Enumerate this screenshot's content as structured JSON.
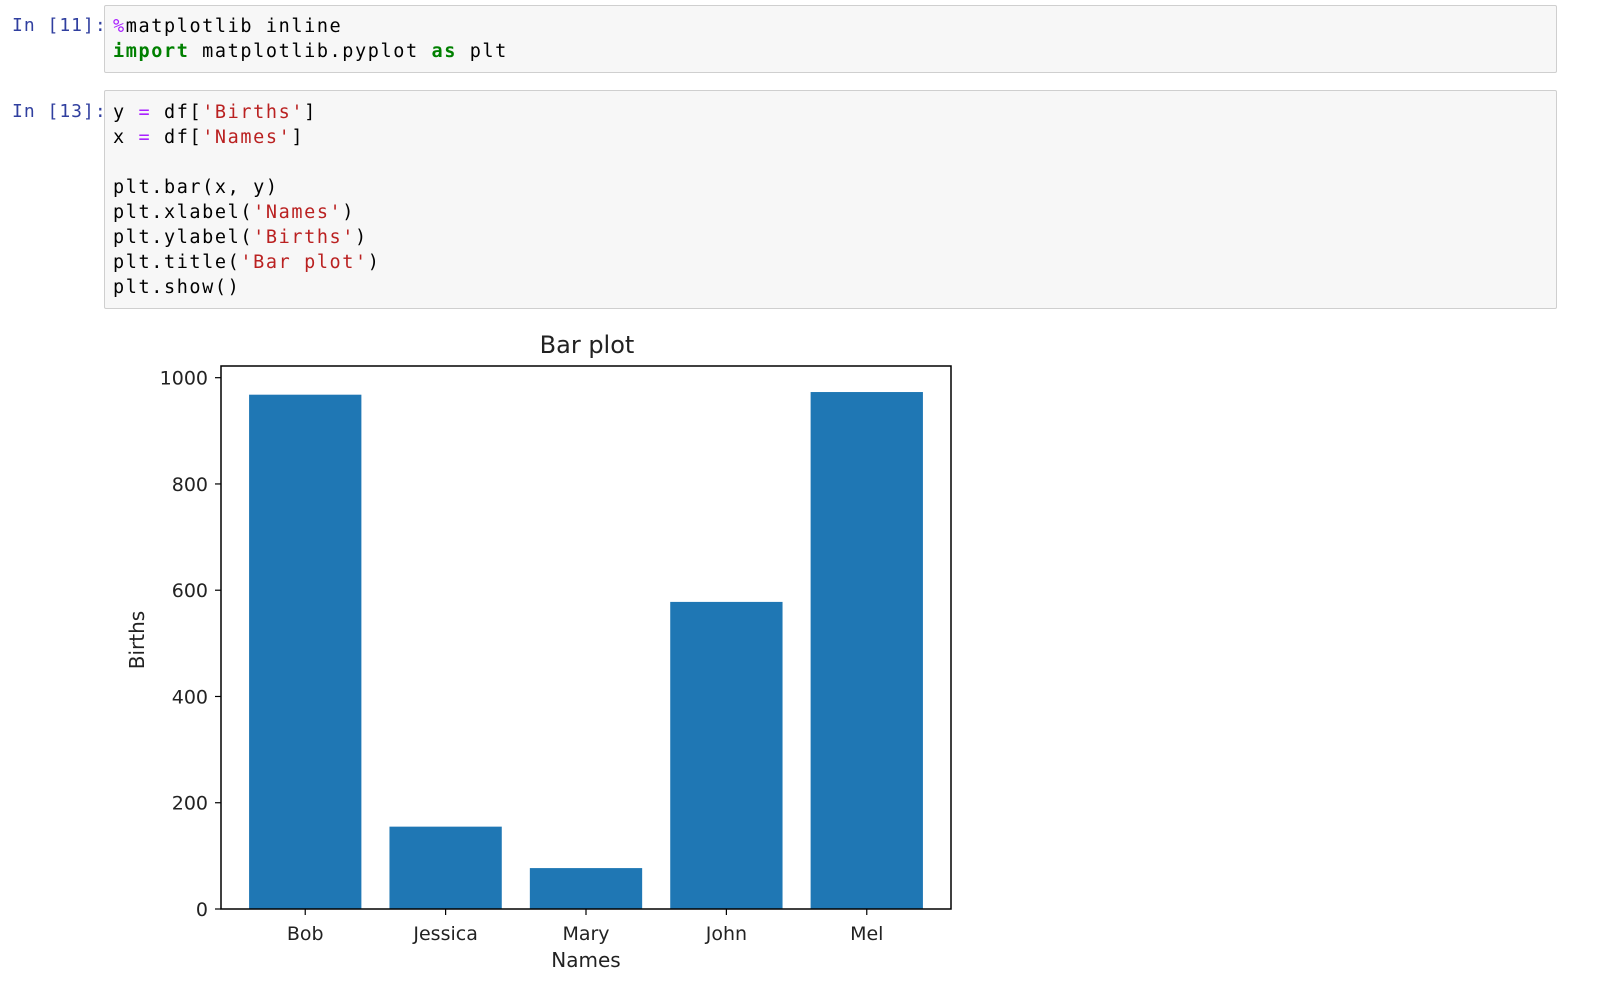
{
  "cells": [
    {
      "prompt": "In [11]:",
      "lines": [
        [
          {
            "t": "magic",
            "v": "%"
          },
          {
            "t": "plain",
            "v": "matplotlib inline"
          }
        ],
        [
          {
            "t": "kw",
            "v": "import"
          },
          {
            "t": "plain",
            "v": " matplotlib.pyplot "
          },
          {
            "t": "kw",
            "v": "as"
          },
          {
            "t": "plain",
            "v": " plt"
          }
        ]
      ]
    },
    {
      "prompt": "In [13]:",
      "lines": [
        [
          {
            "t": "plain",
            "v": "y "
          },
          {
            "t": "op",
            "v": "="
          },
          {
            "t": "plain",
            "v": " df["
          },
          {
            "t": "str",
            "v": "'Births'"
          },
          {
            "t": "plain",
            "v": "]"
          }
        ],
        [
          {
            "t": "plain",
            "v": "x "
          },
          {
            "t": "op",
            "v": "="
          },
          {
            "t": "plain",
            "v": " df["
          },
          {
            "t": "str",
            "v": "'Names'"
          },
          {
            "t": "plain",
            "v": "]"
          }
        ],
        [],
        [
          {
            "t": "plain",
            "v": "plt.bar(x, y)"
          }
        ],
        [
          {
            "t": "plain",
            "v": "plt.xlabel("
          },
          {
            "t": "str",
            "v": "'Names'"
          },
          {
            "t": "plain",
            "v": ")"
          }
        ],
        [
          {
            "t": "plain",
            "v": "plt.ylabel("
          },
          {
            "t": "str",
            "v": "'Births'"
          },
          {
            "t": "plain",
            "v": ")"
          }
        ],
        [
          {
            "t": "plain",
            "v": "plt.title("
          },
          {
            "t": "str",
            "v": "'Bar plot'"
          },
          {
            "t": "plain",
            "v": ")"
          }
        ],
        [
          {
            "t": "plain",
            "v": "plt.show()"
          }
        ]
      ]
    }
  ],
  "chart_data": {
    "type": "bar",
    "title": "Bar plot",
    "xlabel": "Names",
    "ylabel": "Births",
    "categories": [
      "Bob",
      "Jessica",
      "Mary",
      "John",
      "Mel"
    ],
    "values": [
      968,
      155,
      77,
      578,
      973
    ],
    "ylim": [
      0,
      1022
    ],
    "yticks": [
      "0",
      "200",
      "400",
      "600",
      "800",
      "1000"
    ],
    "bar_color": "#1f77b4",
    "grid": false
  }
}
